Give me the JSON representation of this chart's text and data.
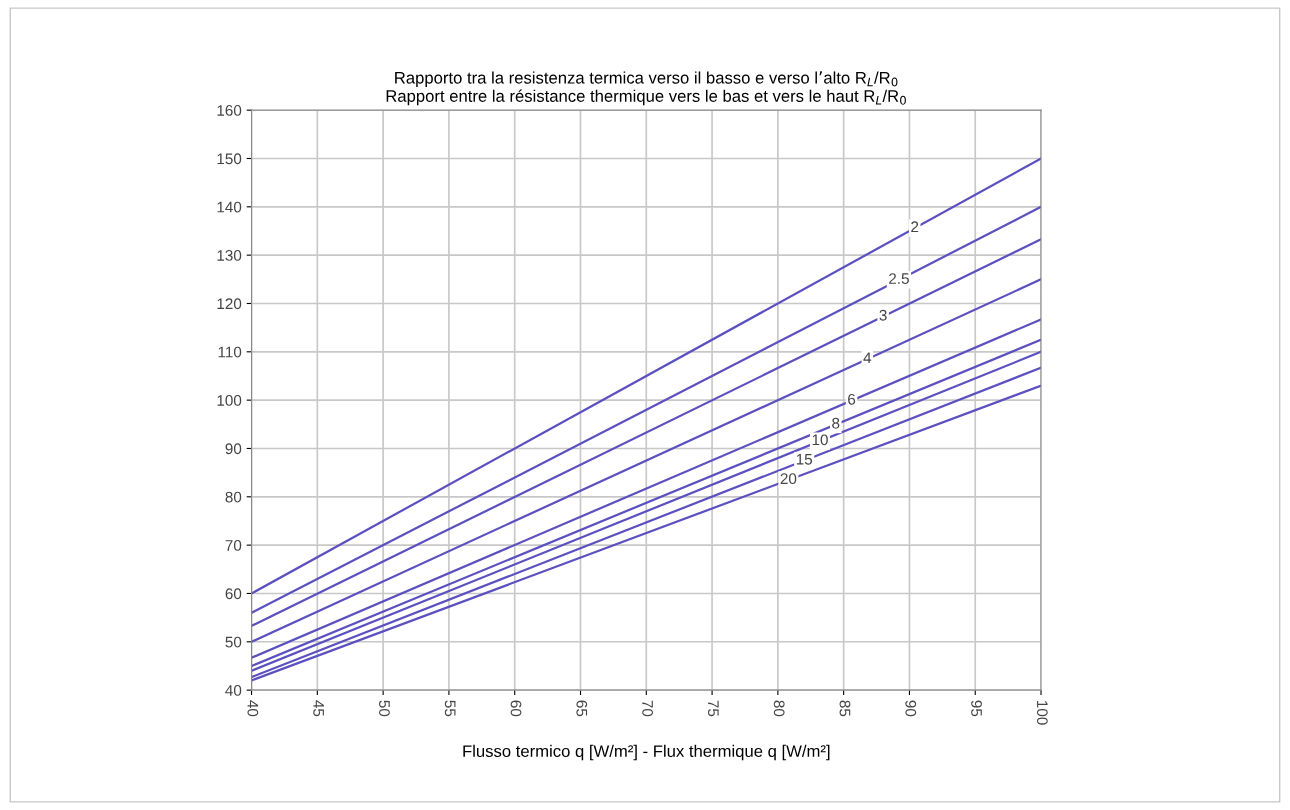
{
  "chart_data": {
    "type": "line",
    "title": "Rapporto tra la resistenza termica verso il basso e verso l’alto R$_{L}$/R$_{0}$\nRapport entre la résistance thermique vers le bas et vers le haut R$_{L}$/R$_{0}$",
    "xlabel": "Flusso termico q [W/m²] - Flux thermique q [W/m²]",
    "x": [
      40,
      100
    ],
    "series": [
      {
        "name": "2",
        "color": "#5b50c0",
        "values": [
          60,
          150
        ]
      },
      {
        "name": "2.5",
        "color": "#5b50c0",
        "values": [
          56,
          140
        ]
      },
      {
        "name": "3",
        "color": "#5b50c0",
        "values": [
          53.3,
          133.3
        ]
      },
      {
        "name": "4",
        "color": "#5b50c0",
        "values": [
          50,
          125
        ]
      },
      {
        "name": "6",
        "color": "#5b50c0",
        "values": [
          46.7,
          116.7
        ]
      },
      {
        "name": "8",
        "color": "#5b50c0",
        "values": [
          45,
          112.5
        ]
      },
      {
        "name": "10",
        "color": "#5b50c0",
        "values": [
          44,
          110
        ]
      },
      {
        "name": "15",
        "color": "#5b50c0",
        "values": [
          42.7,
          106.7
        ]
      },
      {
        "name": "20",
        "color": "#5b50c0",
        "values": [
          42,
          103
        ]
      }
    ],
    "xlim": [
      40,
      100
    ],
    "xticks": [
      40,
      45,
      50,
      55,
      60,
      65,
      70,
      75,
      80,
      85,
      90,
      95,
      100
    ],
    "ylim": [
      40,
      160
    ],
    "yticks": [
      40,
      50,
      60,
      70,
      80,
      90,
      100,
      110,
      120,
      130,
      140,
      150,
      160
    ],
    "grid": true,
    "legend": false,
    "marker": "none",
    "line_style": "solid"
  }
}
